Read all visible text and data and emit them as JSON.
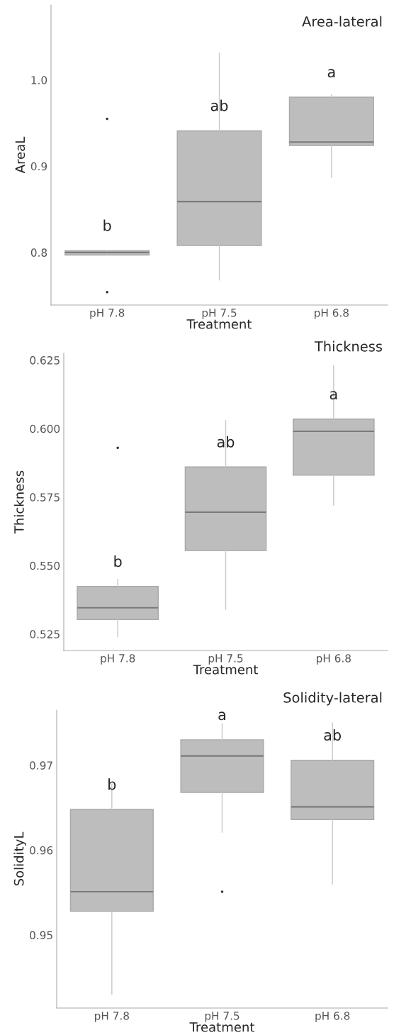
{
  "chart_data": [
    {
      "type": "box",
      "title": "Area-lateral",
      "xlabel": "Treatment",
      "ylabel": "AreaL",
      "color": "#bdbdbd",
      "categories": [
        "pH 7.8",
        "pH 7.5",
        "pH 6.8"
      ],
      "boxes": [
        {
          "low": 0.797,
          "q1": 0.797,
          "median": 0.8,
          "q3": 0.802,
          "high": 0.802,
          "outliers": [
            0.955,
            0.754
          ]
        },
        {
          "low": 0.768,
          "q1": 0.808,
          "median": 0.859,
          "q3": 0.941,
          "high": 1.031
        },
        {
          "low": 0.887,
          "q1": 0.924,
          "median": 0.928,
          "q3": 0.98,
          "high": 0.983
        }
      ],
      "ylim": [
        0.739,
        1.087
      ],
      "yticks": [
        0.8,
        0.9,
        {
          "value": 1.0,
          "label": "1.0"
        }
      ],
      "annotations": [
        "b",
        "ab",
        "a"
      ]
    },
    {
      "type": "box",
      "title": "Thickness",
      "xlabel": "Treatment",
      "ylabel": "Thickness",
      "color": "#bdbdbd",
      "categories": [
        "pH 7.8",
        "pH 7.5",
        "pH 6.8"
      ],
      "boxes": [
        {
          "low": 0.524,
          "q1": 0.5303,
          "median": 0.5346,
          "q3": 0.5424,
          "high": 0.545,
          "outliers": [
            0.593
          ]
        },
        {
          "low": 0.534,
          "q1": 0.5555,
          "median": 0.5695,
          "q3": 0.586,
          "high": 0.603
        },
        {
          "low": 0.572,
          "q1": 0.583,
          "median": 0.599,
          "q3": 0.6035,
          "high": 0.623
        }
      ],
      "ylim": [
        0.519,
        0.6275
      ],
      "yticks": [
        0.525,
        {
          "value": 0.55,
          "label": "0.550"
        },
        0.575,
        {
          "value": 0.6,
          "label": "0.600"
        },
        0.625
      ],
      "annotations": [
        "b",
        "ab",
        "a"
      ]
    },
    {
      "type": "box",
      "title": "Solidity-lateral",
      "xlabel": "Treatment",
      "ylabel": "SolidityL",
      "color": "#bdbdbd",
      "categories": [
        "pH 7.8",
        "pH 7.5",
        "pH 6.8"
      ],
      "boxes": [
        {
          "low": 0.943,
          "q1": 0.9528,
          "median": 0.9551,
          "q3": 0.9648,
          "high": 0.9678
        },
        {
          "low": 0.9621,
          "q1": 0.9668,
          "median": 0.9711,
          "q3": 0.973,
          "high": 0.9749,
          "outliers": [
            0.9551
          ]
        },
        {
          "low": 0.956,
          "q1": 0.9636,
          "median": 0.9651,
          "q3": 0.9706,
          "high": 0.975
        }
      ],
      "ylim": [
        0.9414,
        0.9765
      ],
      "yticks": [
        0.95,
        0.96,
        0.97
      ],
      "annotations": [
        "b",
        "a",
        "ab"
      ]
    }
  ]
}
